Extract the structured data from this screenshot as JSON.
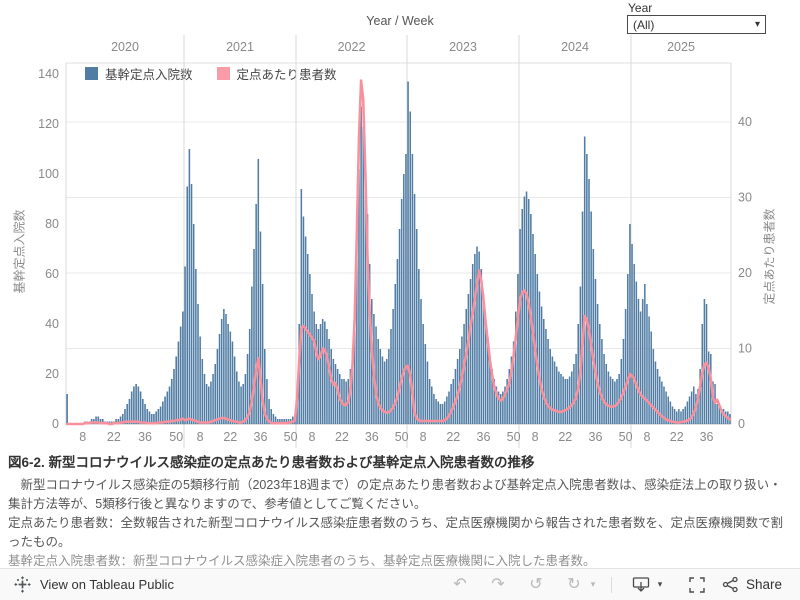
{
  "filter": {
    "label": "Year",
    "value": "(All)",
    "icon": "caret-down"
  },
  "chart": {
    "title": "Year / Week",
    "legend": [
      {
        "label": "基幹定点入院数",
        "color": "#517da5"
      },
      {
        "label": "定点あたり患者数",
        "color": "#f99ca8"
      }
    ],
    "left_axis": {
      "title": "基幹定点入院数",
      "ticks": [
        0,
        20,
        40,
        60,
        80,
        100,
        120,
        140
      ]
    },
    "right_axis": {
      "title": "定点あたり患者数",
      "ticks": [
        0,
        10,
        20,
        30,
        40
      ]
    },
    "x_axis": {
      "years": [
        "2020",
        "2021",
        "2022",
        "2023",
        "2024",
        "2025"
      ],
      "week_ticks": [
        8,
        22,
        36,
        50
      ]
    }
  },
  "chart_data": {
    "type": "bar+line",
    "title": "Year / Week",
    "bar_series_name": "基幹定点入院数",
    "line_series_name": "定点あたり患者数",
    "bar_color": "#517da5",
    "line_color": "#f8909e",
    "left_ylim": [
      0,
      140
    ],
    "right_ylim": [
      0,
      46
    ],
    "week_tick_values": [
      8,
      22,
      36,
      50
    ],
    "years": [
      {
        "year": "2020",
        "hospitalizations": [
          12,
          0,
          0,
          0,
          0,
          0,
          0,
          0,
          1,
          1,
          1,
          2,
          2,
          3,
          3,
          2,
          2,
          1,
          1,
          1,
          1,
          1,
          2,
          2,
          3,
          4,
          6,
          8,
          10,
          13,
          15,
          16,
          15,
          13,
          10,
          8,
          6,
          5,
          4,
          4,
          5,
          6,
          7,
          9,
          11,
          13,
          15,
          18,
          22,
          27,
          33,
          39,
          45
        ],
        "per_sentinel": [
          0,
          0,
          0,
          0,
          0,
          0,
          0,
          0,
          0.1,
          0.1,
          0.1,
          0.2,
          0.2,
          0.2,
          0.2,
          0.1,
          0.1,
          0.1,
          0.1,
          0,
          0,
          0.1,
          0.1,
          0.1,
          0.2,
          0.2,
          0.3,
          0.3,
          0.3,
          0.3,
          0.3,
          0.3,
          0.3,
          0.2,
          0.2,
          0.2,
          0.1,
          0.1,
          0.1,
          0.1,
          0.1,
          0.2,
          0.2,
          0.2,
          0.3,
          0.3,
          0.3,
          0.4,
          0.4,
          0.5,
          0.5,
          0.6,
          0.7
        ]
      },
      {
        "year": "2021",
        "hospitalizations": [
          63,
          95,
          110,
          96,
          80,
          62,
          48,
          35,
          26,
          20,
          16,
          15,
          17,
          20,
          24,
          30,
          36,
          42,
          46,
          44,
          40,
          37,
          33,
          27,
          21,
          17,
          15,
          16,
          20,
          28,
          38,
          55,
          70,
          88,
          106,
          77,
          56,
          30,
          18,
          10,
          6,
          4,
          3,
          2,
          2,
          2,
          2,
          2,
          2,
          2,
          3,
          4
        ],
        "per_sentinel": [
          0.5,
          0.6,
          0.7,
          0.6,
          0.5,
          0.4,
          0.3,
          0.2,
          0.2,
          0.2,
          0.2,
          0.2,
          0.3,
          0.4,
          0.5,
          0.6,
          0.7,
          0.8,
          0.8,
          0.7,
          0.6,
          0.5,
          0.4,
          0.3,
          0.3,
          0.2,
          0.2,
          0.3,
          0.5,
          0.9,
          1.6,
          3.0,
          5.0,
          7.2,
          8.7,
          6.0,
          3.2,
          1.4,
          0.7,
          0.3,
          0.2,
          0.1,
          0.1,
          0.1,
          0.1,
          0.1,
          0.1,
          0.1,
          0.2,
          0.2,
          0.3,
          0.5
        ]
      },
      {
        "year": "2022",
        "hospitalizations": [
          8,
          40,
          94,
          83,
          75,
          68,
          60,
          52,
          45,
          40,
          38,
          40,
          42,
          41,
          38,
          34,
          30,
          26,
          24,
          22,
          20,
          18,
          18,
          17,
          18,
          22,
          30,
          48,
          78,
          102,
          127,
          119,
          104,
          84,
          64,
          50,
          44,
          39,
          34,
          30,
          27,
          25,
          26,
          30,
          38,
          46,
          56,
          66,
          78,
          90,
          100,
          108
        ],
        "per_sentinel": [
          3.4,
          8.3,
          12.7,
          13.0,
          12.6,
          12.2,
          11.8,
          11.4,
          11.0,
          9.5,
          8.6,
          9.0,
          10.0,
          9.8,
          9.0,
          7.5,
          6.0,
          5.2,
          5.4,
          4.5,
          3.4,
          2.8,
          2.5,
          2.5,
          3.0,
          4.5,
          8.0,
          14.0,
          25.0,
          38.0,
          45.5,
          43.0,
          33.0,
          22.0,
          15.0,
          10.0,
          6.5,
          4.0,
          2.8,
          2.2,
          1.8,
          1.6,
          1.5,
          1.6,
          1.8,
          2.2,
          2.8,
          3.6,
          4.8,
          6.0,
          7.0,
          7.6
        ]
      },
      {
        "year": "2023",
        "hospitalizations": [
          137,
          125,
          108,
          92,
          78,
          62,
          50,
          40,
          32,
          25,
          18,
          15,
          12,
          10,
          9,
          8,
          8,
          9,
          11,
          13,
          16,
          18,
          22,
          26,
          30,
          35,
          40,
          46,
          52,
          58,
          64,
          68,
          71,
          69,
          62,
          52,
          42,
          34,
          27,
          22,
          18,
          15,
          13,
          12,
          13,
          15,
          18,
          22,
          27,
          33,
          45,
          60
        ],
        "per_sentinel": [
          7.7,
          6.5,
          4.0,
          1.5,
          0.7,
          0.5,
          0.4,
          0.4,
          0.4,
          0.4,
          0.4,
          0.4,
          0.4,
          0.4,
          0.4,
          0.4,
          0.4,
          0.5,
          0.7,
          1.1,
          1.6,
          2.3,
          3.0,
          3.8,
          4.9,
          6.2,
          7.8,
          9.3,
          11.0,
          13.0,
          14.6,
          16.5,
          18.5,
          20.3,
          19.0,
          16.5,
          13.5,
          11.0,
          8.5,
          6.5,
          5.0,
          4.0,
          3.4,
          3.1,
          3.3,
          3.9,
          4.6,
          5.4,
          7.0,
          9.0,
          11.5,
          14.0
        ]
      },
      {
        "year": "2024",
        "hospitalizations": [
          78,
          86,
          91,
          93,
          90,
          84,
          76,
          68,
          60,
          53,
          47,
          42,
          38,
          34,
          30,
          27,
          25,
          23,
          21,
          20,
          19,
          18,
          18,
          19,
          21,
          24,
          28,
          40,
          55,
          85,
          115,
          108,
          98,
          85,
          70,
          58,
          48,
          40,
          34,
          28,
          24,
          21,
          19,
          18,
          17,
          18,
          20,
          26,
          34,
          46,
          60,
          80
        ],
        "per_sentinel": [
          16.5,
          17.4,
          17.7,
          17.2,
          16.0,
          14.2,
          12.0,
          9.8,
          7.8,
          6.0,
          4.6,
          3.6,
          2.9,
          2.4,
          2.1,
          1.9,
          1.8,
          1.7,
          1.6,
          1.6,
          1.7,
          1.8,
          2.0,
          2.2,
          2.5,
          2.9,
          3.5,
          4.8,
          7.0,
          10.5,
          14.3,
          13.8,
          12.5,
          10.5,
          8.5,
          6.8,
          5.4,
          4.3,
          3.5,
          3.0,
          2.6,
          2.4,
          2.3,
          2.3,
          2.4,
          2.6,
          3.0,
          3.5,
          4.2,
          5.0,
          5.8,
          6.6
        ]
      },
      {
        "year": "2025",
        "hospitalizations": [
          72,
          64,
          57,
          50,
          45,
          50,
          56,
          48,
          43,
          37,
          30,
          25,
          22,
          19,
          17,
          15,
          13,
          11,
          9,
          7,
          6,
          5,
          6,
          5,
          6,
          7,
          9,
          11,
          13,
          15,
          12,
          14,
          22,
          40,
          50,
          48,
          29,
          28,
          17,
          16,
          8,
          7,
          6,
          6,
          5,
          5,
          4
        ],
        "per_sentinel": [
          6.4,
          6.0,
          5.2,
          4.5,
          3.9,
          3.6,
          3.3,
          3.1,
          2.8,
          2.5,
          2.2,
          1.9,
          1.6,
          1.3,
          1.0,
          0.8,
          0.6,
          0.5,
          0.4,
          0.3,
          0.25,
          0.2,
          0.2,
          0.25,
          0.3,
          0.35,
          0.45,
          0.6,
          0.9,
          1.4,
          2.2,
          3.4,
          5.0,
          6.8,
          7.9,
          8.1,
          7.4,
          6.0,
          3.6,
          2.8,
          3.2,
          2.5,
          1.8,
          1.3,
          1.0,
          0.8,
          0.6
        ]
      }
    ]
  },
  "caption": {
    "title": "図6-2. 新型コロナウイルス感染症の定点あたり患者数および基幹定点入院患者数の推移",
    "para1": "　新型コロナウイルス感染症の5類移行前（2023年18週まで）の定点あたり患者数および基幹定点入院患者数は、感染症法上の取り扱い・集計方法等が、5類移行後と異なりますので、参考値としてご覧ください。",
    "para2": "定点あたり患者数：全数報告された新型コロナウイルス感染症患者数のうち、定点医療機関から報告された患者数を、定点医療機関数で割ったもの。",
    "para3": "基幹定点入院患者数：新型コロナウイルス感染症入院患者のうち、基幹定点医療機関に入院した患者数。"
  },
  "toolbar": {
    "view_label": "View on Tableau Public",
    "share_label": "Share",
    "undo_icon": "undo",
    "redo_icon": "redo",
    "reset_icon": "replay",
    "refresh_icon": "refresh",
    "download_icon": "download",
    "fullscreen_icon": "fullscreen",
    "share_icon": "share"
  }
}
